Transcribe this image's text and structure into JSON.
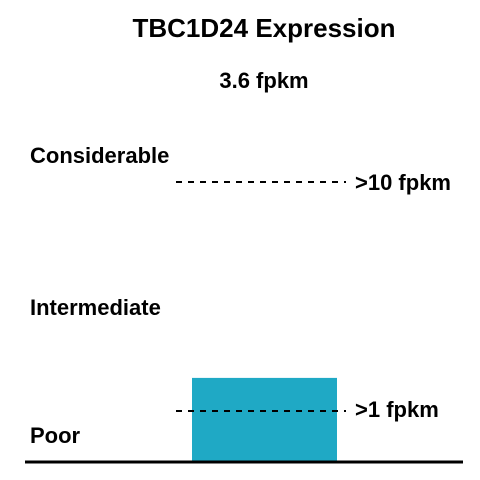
{
  "chart_data": {
    "type": "bar",
    "title": "TBC1D24 Expression",
    "value_label": "3.6 fpkm",
    "gene": "TBC1D24",
    "value": 3.6,
    "unit": "fpkm",
    "bar_color": "#1fa9c5",
    "levels": [
      {
        "label": "Considerable"
      },
      {
        "label": "Intermediate"
      },
      {
        "label": "Poor"
      }
    ],
    "thresholds": [
      {
        "value": 10,
        "label": ">10 fpkm"
      },
      {
        "value": 1,
        "label": ">1 fpkm"
      }
    ]
  }
}
